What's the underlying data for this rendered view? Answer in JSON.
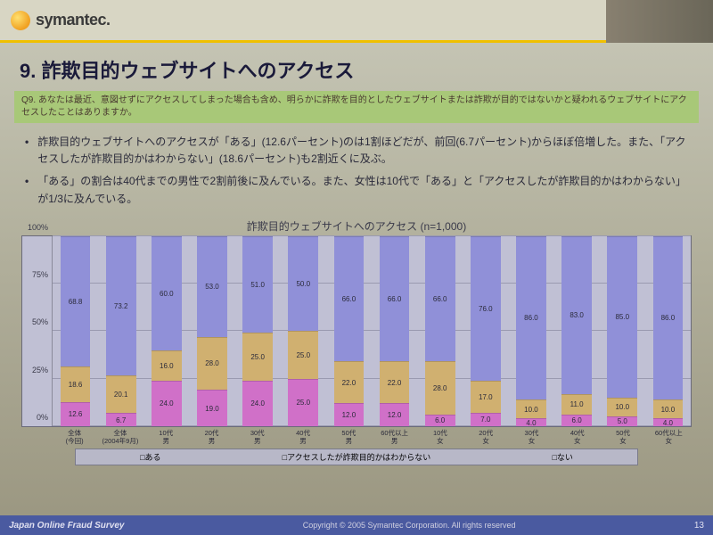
{
  "logo": {
    "name": "symantec."
  },
  "title": "9. 詐欺目的ウェブサイトへのアクセス",
  "question": "Q9. あなたは最近、意図せずにアクセスしてしまった場合も含め、明らかに詐欺を目的としたウェブサイトまたは詐欺が目的ではないかと疑われるウェブサイトにアクセスしたことはありますか。",
  "bullets": [
    "詐欺目的ウェブサイトへのアクセスが「ある」(12.6パーセント)のは1割ほどだが、前回(6.7パーセント)からほぼ倍増した。また、「アクセスしたが詐欺目的かはわからない」(18.6パーセント)も2割近くに及ぶ。",
    "「ある」の割合は40代までの男性で2割前後に及んでいる。また、女性は10代で「ある」と「アクセスしたが詐欺目的かはわからない」が1/3に及んでいる。"
  ],
  "chart": {
    "type": "stacked-bar",
    "title": "詐欺目的ウェブサイトへのアクセス (n=1,000)",
    "ylim": [
      0,
      100
    ],
    "ytick_step": 25,
    "ylabels": [
      "0%",
      "25%",
      "50%",
      "75%",
      "100%"
    ],
    "bg_color": "#c0c0d4",
    "grid_color": "#9a9ab0",
    "series_colors": [
      "#d070c8",
      "#d0b070",
      "#9090d8"
    ],
    "series_labels": [
      "ある",
      "アクセスしたが詐欺目的かはわからない",
      "ない"
    ],
    "categories": [
      {
        "label": "全体\n(今回)",
        "values": [
          12.6,
          18.6,
          68.8
        ]
      },
      {
        "label": "全体\n(2004年9月)",
        "values": [
          6.7,
          20.1,
          73.2
        ]
      },
      {
        "label": "10代\n男",
        "values": [
          24.0,
          16.0,
          60.0
        ]
      },
      {
        "label": "20代\n男",
        "values": [
          19.0,
          28.0,
          53.0
        ]
      },
      {
        "label": "30代\n男",
        "values": [
          24.0,
          25.0,
          51.0
        ]
      },
      {
        "label": "40代\n男",
        "values": [
          25.0,
          25.0,
          50.0
        ]
      },
      {
        "label": "50代\n男",
        "values": [
          12.0,
          22.0,
          66.0
        ]
      },
      {
        "label": "60代以上\n男",
        "values": [
          12.0,
          22.0,
          66.0
        ]
      },
      {
        "label": "10代\n女",
        "values": [
          6.0,
          28.0,
          66.0
        ]
      },
      {
        "label": "20代\n女",
        "values": [
          7.0,
          17.0,
          76.0
        ]
      },
      {
        "label": "30代\n女",
        "values": [
          4.0,
          10.0,
          86.0
        ]
      },
      {
        "label": "40代\n女",
        "values": [
          6.0,
          11.0,
          83.0
        ]
      },
      {
        "label": "50代\n女",
        "values": [
          5.0,
          10.0,
          85.0
        ]
      },
      {
        "label": "60代以上\n女",
        "values": [
          4.0,
          10.0,
          86.0
        ]
      }
    ]
  },
  "footer": {
    "left": "Japan Online Fraud Survey",
    "copyright": "Copyright © 2005 Symantec Corporation. All rights reserved",
    "page": "13"
  }
}
